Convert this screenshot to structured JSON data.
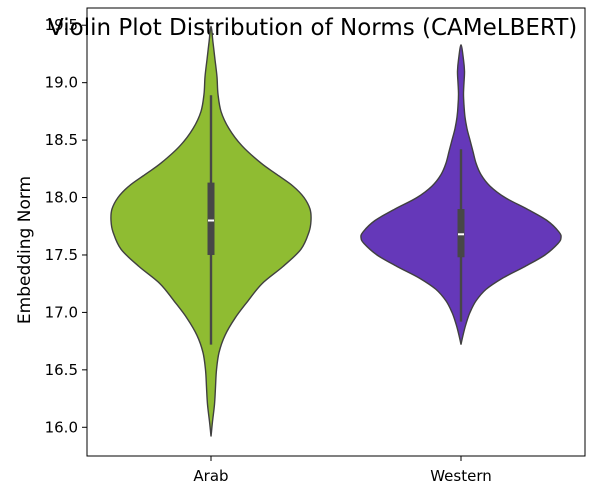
{
  "chart_data": {
    "type": "violin",
    "title": "Violin Plot Distribution of Norms (CAMeLBERT)",
    "xlabel": "",
    "ylabel": "Embedding Norm",
    "ylim": [
      15.75,
      19.65
    ],
    "yticks": [
      "16.0",
      "16.5",
      "17.0",
      "17.5",
      "18.0",
      "18.5",
      "19.0",
      "19.5"
    ],
    "grid": false,
    "legend": "none",
    "categories": [
      "Arab",
      "Western"
    ],
    "violins": [
      {
        "category": "Arab",
        "color": "#8fbc32",
        "range": [
          15.92,
          19.49
        ],
        "median": 17.8,
        "q1": 17.5,
        "q3": 18.13,
        "whisker_low": 16.72,
        "whisker_high": 18.89,
        "density": [
          [
            15.92,
            0.0
          ],
          [
            16.05,
            0.015
          ],
          [
            16.2,
            0.035
          ],
          [
            16.35,
            0.045
          ],
          [
            16.5,
            0.055
          ],
          [
            16.65,
            0.08
          ],
          [
            16.8,
            0.14
          ],
          [
            16.95,
            0.24
          ],
          [
            17.1,
            0.37
          ],
          [
            17.25,
            0.51
          ],
          [
            17.4,
            0.72
          ],
          [
            17.55,
            0.9
          ],
          [
            17.7,
            0.98
          ],
          [
            17.8,
            1.0
          ],
          [
            17.9,
            0.99
          ],
          [
            18.0,
            0.93
          ],
          [
            18.1,
            0.82
          ],
          [
            18.2,
            0.66
          ],
          [
            18.3,
            0.5
          ],
          [
            18.45,
            0.31
          ],
          [
            18.6,
            0.18
          ],
          [
            18.75,
            0.1
          ],
          [
            18.9,
            0.07
          ],
          [
            19.05,
            0.06
          ],
          [
            19.2,
            0.04
          ],
          [
            19.35,
            0.02
          ],
          [
            19.49,
            0.0
          ]
        ]
      },
      {
        "category": "Western",
        "color": "#6538b9",
        "range": [
          16.72,
          19.33
        ],
        "median": 17.68,
        "q1": 17.48,
        "q3": 17.9,
        "whisker_low": 16.92,
        "whisker_high": 18.42,
        "density": [
          [
            16.72,
            0.0
          ],
          [
            16.8,
            0.02
          ],
          [
            16.9,
            0.05
          ],
          [
            17.0,
            0.09
          ],
          [
            17.1,
            0.15
          ],
          [
            17.2,
            0.25
          ],
          [
            17.3,
            0.42
          ],
          [
            17.4,
            0.64
          ],
          [
            17.5,
            0.84
          ],
          [
            17.6,
            0.97
          ],
          [
            17.65,
            1.0
          ],
          [
            17.7,
            0.98
          ],
          [
            17.8,
            0.86
          ],
          [
            17.9,
            0.66
          ],
          [
            18.0,
            0.44
          ],
          [
            18.1,
            0.29
          ],
          [
            18.2,
            0.2
          ],
          [
            18.3,
            0.15
          ],
          [
            18.4,
            0.12
          ],
          [
            18.5,
            0.09
          ],
          [
            18.6,
            0.06
          ],
          [
            18.7,
            0.04
          ],
          [
            18.8,
            0.03
          ],
          [
            18.9,
            0.025
          ],
          [
            19.0,
            0.03
          ],
          [
            19.1,
            0.035
          ],
          [
            19.2,
            0.025
          ],
          [
            19.33,
            0.0
          ]
        ]
      }
    ]
  }
}
